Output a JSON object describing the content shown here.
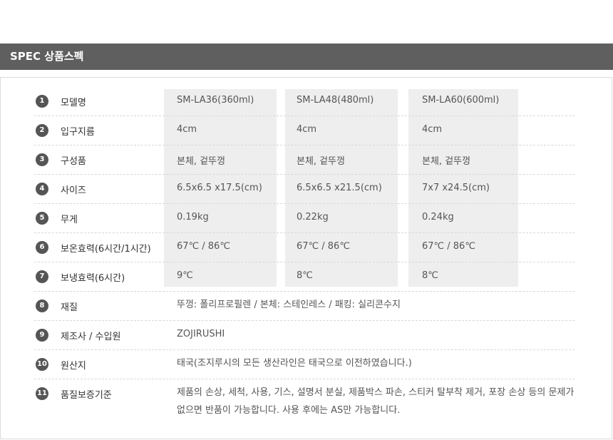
{
  "header": {
    "title": "SPEC 상품스펙"
  },
  "models": [
    "SM-LA36(360ml)",
    "SM-LA48(480ml)",
    "SM-LA60(600ml)"
  ],
  "rows": [
    {
      "num": "1",
      "label": "모델명",
      "values": [
        "SM-LA36(360ml)",
        "SM-LA48(480ml)",
        "SM-LA60(600ml)"
      ]
    },
    {
      "num": "2",
      "label": "입구지름",
      "values": [
        "4cm",
        "4cm",
        "4cm"
      ]
    },
    {
      "num": "3",
      "label": "구성품",
      "values": [
        "본체, 겉뚜껑",
        "본체, 겉뚜껑",
        "본체, 겉뚜껑"
      ]
    },
    {
      "num": "4",
      "label": "사이즈",
      "values": [
        "6.5x6.5 x17.5(cm)",
        "6.5x6.5 x21.5(cm)",
        "7x7 x24.5(cm)"
      ]
    },
    {
      "num": "5",
      "label": "무게",
      "values": [
        "0.19kg",
        "0.22kg",
        "0.24kg"
      ]
    },
    {
      "num": "6",
      "label": "보온효력(6시간/1시간)",
      "values": [
        "67℃ / 86℃",
        "67℃ / 86℃",
        "67℃ / 86℃"
      ]
    },
    {
      "num": "7",
      "label": "보냉효력(6시간)",
      "values": [
        "9℃",
        "8℃",
        "8℃"
      ]
    },
    {
      "num": "8",
      "label": "재질",
      "value": "뚜껑: 폴리프로필렌 / 본체: 스테인레스 / 패킹: 실리콘수지"
    },
    {
      "num": "9",
      "label": "제조사 / 수입원",
      "value": "ZOJIRUSHI"
    },
    {
      "num": "10",
      "label": "원산지",
      "value": "태국(조지루시의 모든 생산라인은 태국으로 이전하였습니다.)"
    },
    {
      "num": "11",
      "label": "품질보증기준",
      "value": "제품의 손상, 세척, 사용, 기스, 설명서 분실, 제품박스 파손, 스티커 탈부착 제거, 포장 손상 등의 문제가 없으면 반품이 가능합니다. 사용 후에는 AS만 가능합니다."
    }
  ]
}
